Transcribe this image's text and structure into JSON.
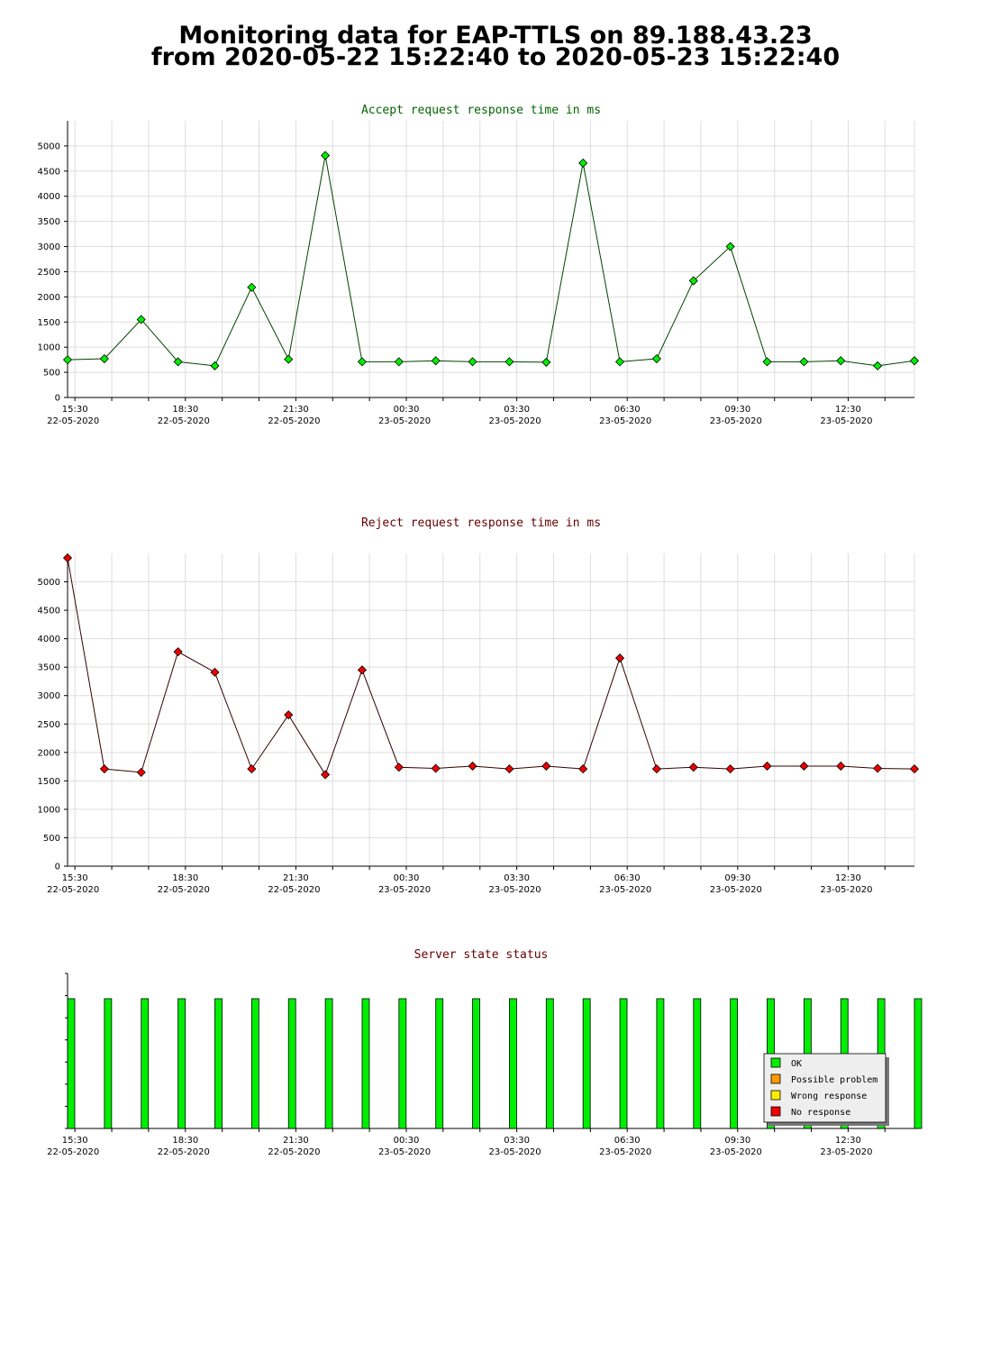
{
  "page": {
    "title_line1": "Monitoring data for EAP-TTLS on 89.188.43.23",
    "title_line2": "from 2020-05-22 15:22:40 to 2020-05-23 15:22:40"
  },
  "colors": {
    "accept_title": "#006600",
    "reject_title": "#660000",
    "status_title": "#660000",
    "accept_marker": "#00ee00",
    "reject_marker": "#ee0000",
    "ok": "#00ee00",
    "possible_problem": "#ff9900",
    "wrong_response": "#ffee00",
    "no_response": "#ee0000",
    "grid": "#dddddd"
  },
  "x_axis": {
    "ticks": [
      {
        "time": "15:30",
        "date": "22-05-2020"
      },
      {
        "time": "18:30",
        "date": "22-05-2020"
      },
      {
        "time": "21:30",
        "date": "22-05-2020"
      },
      {
        "time": "00:30",
        "date": "23-05-2020"
      },
      {
        "time": "03:30",
        "date": "23-05-2020"
      },
      {
        "time": "06:30",
        "date": "23-05-2020"
      },
      {
        "time": "09:30",
        "date": "23-05-2020"
      },
      {
        "time": "12:30",
        "date": "23-05-2020"
      }
    ]
  },
  "chart_data": [
    {
      "type": "line",
      "title": "Accept request response time in ms",
      "ylim": [
        0,
        5500
      ],
      "yticks": [
        0,
        500,
        1000,
        1500,
        2000,
        2500,
        3000,
        3500,
        4000,
        4500,
        5000
      ],
      "grid": true,
      "values": [
        750,
        770,
        1550,
        710,
        630,
        2190,
        760,
        4810,
        710,
        710,
        730,
        710,
        710,
        700,
        4660,
        710,
        770,
        2320,
        3000,
        710,
        710,
        730,
        630,
        730
      ]
    },
    {
      "type": "line",
      "title": "Reject request response time in ms",
      "ylim": [
        0,
        5500
      ],
      "yticks": [
        0,
        500,
        1000,
        1500,
        2000,
        2500,
        3000,
        3500,
        4000,
        4500,
        5000
      ],
      "grid": true,
      "values": [
        5420,
        1710,
        1650,
        3770,
        3410,
        1710,
        2660,
        1610,
        3450,
        1740,
        1720,
        1760,
        1710,
        1760,
        1710,
        3660,
        1710,
        1740,
        1710,
        1760,
        1760,
        1760,
        1720,
        1710
      ]
    },
    {
      "type": "bar",
      "title": "Server state status",
      "grid": false,
      "legend_position": "bottom-right",
      "legend": [
        "OK",
        "Possible problem",
        "Wrong response",
        "No response"
      ],
      "states": [
        "OK",
        "OK",
        "OK",
        "OK",
        "OK",
        "OK",
        "OK",
        "OK",
        "OK",
        "OK",
        "OK",
        "OK",
        "OK",
        "OK",
        "OK",
        "OK",
        "OK",
        "OK",
        "OK",
        "OK",
        "OK",
        "OK",
        "OK",
        "OK"
      ]
    }
  ]
}
